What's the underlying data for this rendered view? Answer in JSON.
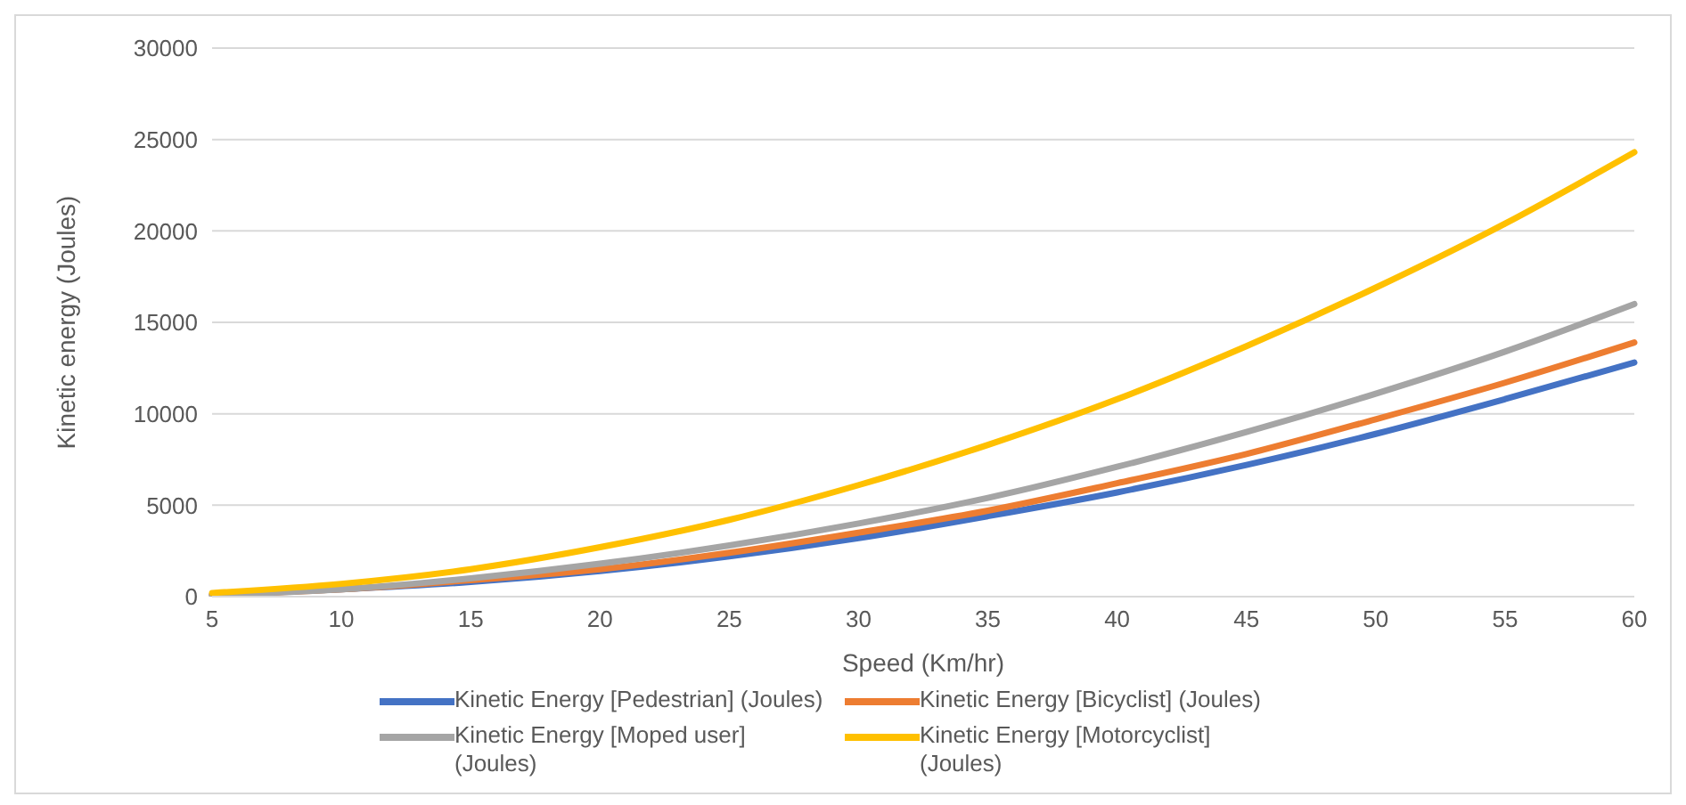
{
  "chart_data": {
    "type": "line",
    "xlabel": "Speed (Km/hr)",
    "ylabel": "Kinetic energy (Joules)",
    "categories": [
      "5",
      "10",
      "15",
      "20",
      "25",
      "30",
      "35",
      "40",
      "45",
      "50",
      "55",
      "60"
    ],
    "series": [
      {
        "name": "Kinetic Energy [Pedestrian] (Joules)",
        "color": "#4472c4",
        "values": [
          100,
          400,
          800,
          1400,
          2200,
          3200,
          4400,
          5700,
          7200,
          8900,
          10800,
          12800
        ]
      },
      {
        "name": "Kinetic Energy [Bicyclist] (Joules)",
        "color": "#ed7d31",
        "values": [
          100,
          400,
          900,
          1500,
          2400,
          3500,
          4700,
          6200,
          7800,
          9700,
          11700,
          13900
        ]
      },
      {
        "name": "Kinetic Energy [Moped user] (Joules)",
        "color": "#a5a5a5",
        "values": [
          100,
          400,
          1000,
          1800,
          2800,
          4000,
          5400,
          7100,
          9000,
          11100,
          13400,
          16000
        ]
      },
      {
        "name": "Kinetic Energy [Motorcyclist] (Joules)",
        "color": "#ffc000",
        "values": [
          200,
          700,
          1500,
          2700,
          4200,
          6100,
          8300,
          10800,
          13700,
          16900,
          20400,
          24300
        ]
      }
    ],
    "ylim": [
      0,
      30000
    ],
    "yticks": [
      0,
      5000,
      10000,
      15000,
      20000,
      25000,
      30000
    ],
    "grid": "y",
    "legend": "bottom",
    "marker": "none",
    "line_style": "solid"
  }
}
